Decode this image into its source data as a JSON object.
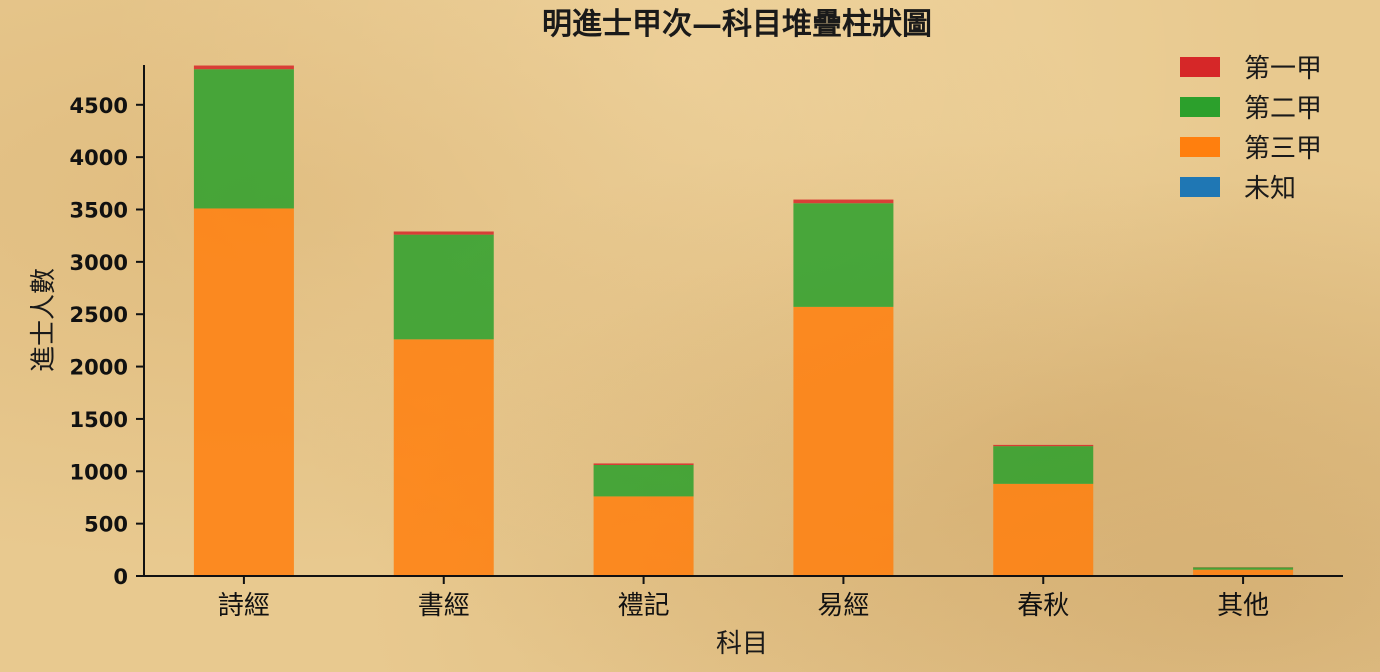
{
  "chart_data": {
    "type": "bar",
    "stacked": true,
    "title": "明進士甲次—科目堆疊柱狀圖",
    "xlabel": "科目",
    "ylabel": "進士人數",
    "categories": [
      "詩經",
      "書經",
      "禮記",
      "易經",
      "春秋",
      "其他"
    ],
    "ylim": [
      0,
      4880
    ],
    "yticks": [
      0,
      500,
      1000,
      1500,
      2000,
      2500,
      3000,
      3500,
      4000,
      4500
    ],
    "legend_position": "top-right",
    "series": [
      {
        "name": "第三甲",
        "color": "#ff7f0e",
        "values": [
          3510,
          2260,
          760,
          2570,
          880,
          60
        ]
      },
      {
        "name": "第二甲",
        "color": "#2ca02c",
        "values": [
          1330,
          1000,
          300,
          990,
          360,
          22
        ]
      },
      {
        "name": "第一甲",
        "color": "#d62728",
        "values": [
          35,
          30,
          15,
          35,
          12,
          2
        ]
      },
      {
        "name": "未知",
        "color": "#1f77b4",
        "values": [
          0,
          0,
          0,
          0,
          0,
          0
        ]
      }
    ],
    "legend_order": [
      "第一甲",
      "第二甲",
      "第三甲",
      "未知"
    ]
  }
}
